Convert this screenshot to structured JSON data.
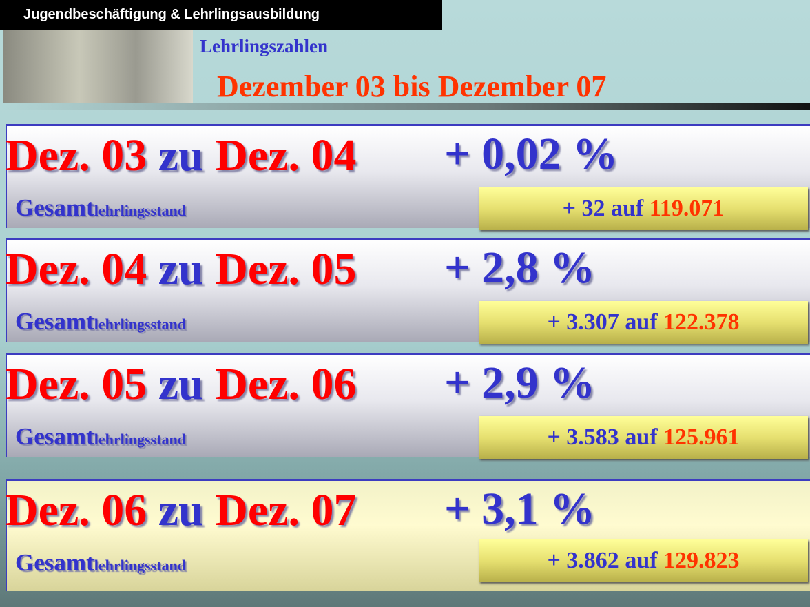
{
  "header": {
    "section": "Jugendbeschäftigung & Lehrlingsausbildung",
    "subtitle": "Lehrlingszahlen",
    "title": "Dezember 03 bis Dezember 07"
  },
  "rows": [
    {
      "from": "Dez. 03",
      "joiner": "zu",
      "to": "Dez. 04",
      "change": "+ 0,02 %",
      "label": "Gesamt",
      "label_suffix": "lehrlingsstand",
      "increase": "+ 32",
      "connector": "auf",
      "total": "119.071"
    },
    {
      "from": "Dez. 04",
      "joiner": "zu",
      "to": "Dez. 05",
      "change": "+ 2,8 %",
      "label": "Gesamt",
      "label_suffix": "lehrlingsstand",
      "increase": "+ 3.307",
      "connector": "auf",
      "total": "122.378"
    },
    {
      "from": "Dez. 05",
      "joiner": "zu",
      "to": "Dez. 06",
      "change": "+ 2,9 %",
      "label": "Gesamt",
      "label_suffix": "lehrlingsstand",
      "increase": "+ 3.583",
      "connector": "auf",
      "total": "125.961"
    },
    {
      "from": "Dez. 06",
      "joiner": "zu",
      "to": "Dez. 07",
      "change": "+ 3,1 %",
      "label": "Gesamt",
      "label_suffix": "lehrlingsstand",
      "increase": "+ 3.862",
      "connector": "auf",
      "total": "129.823"
    }
  ]
}
